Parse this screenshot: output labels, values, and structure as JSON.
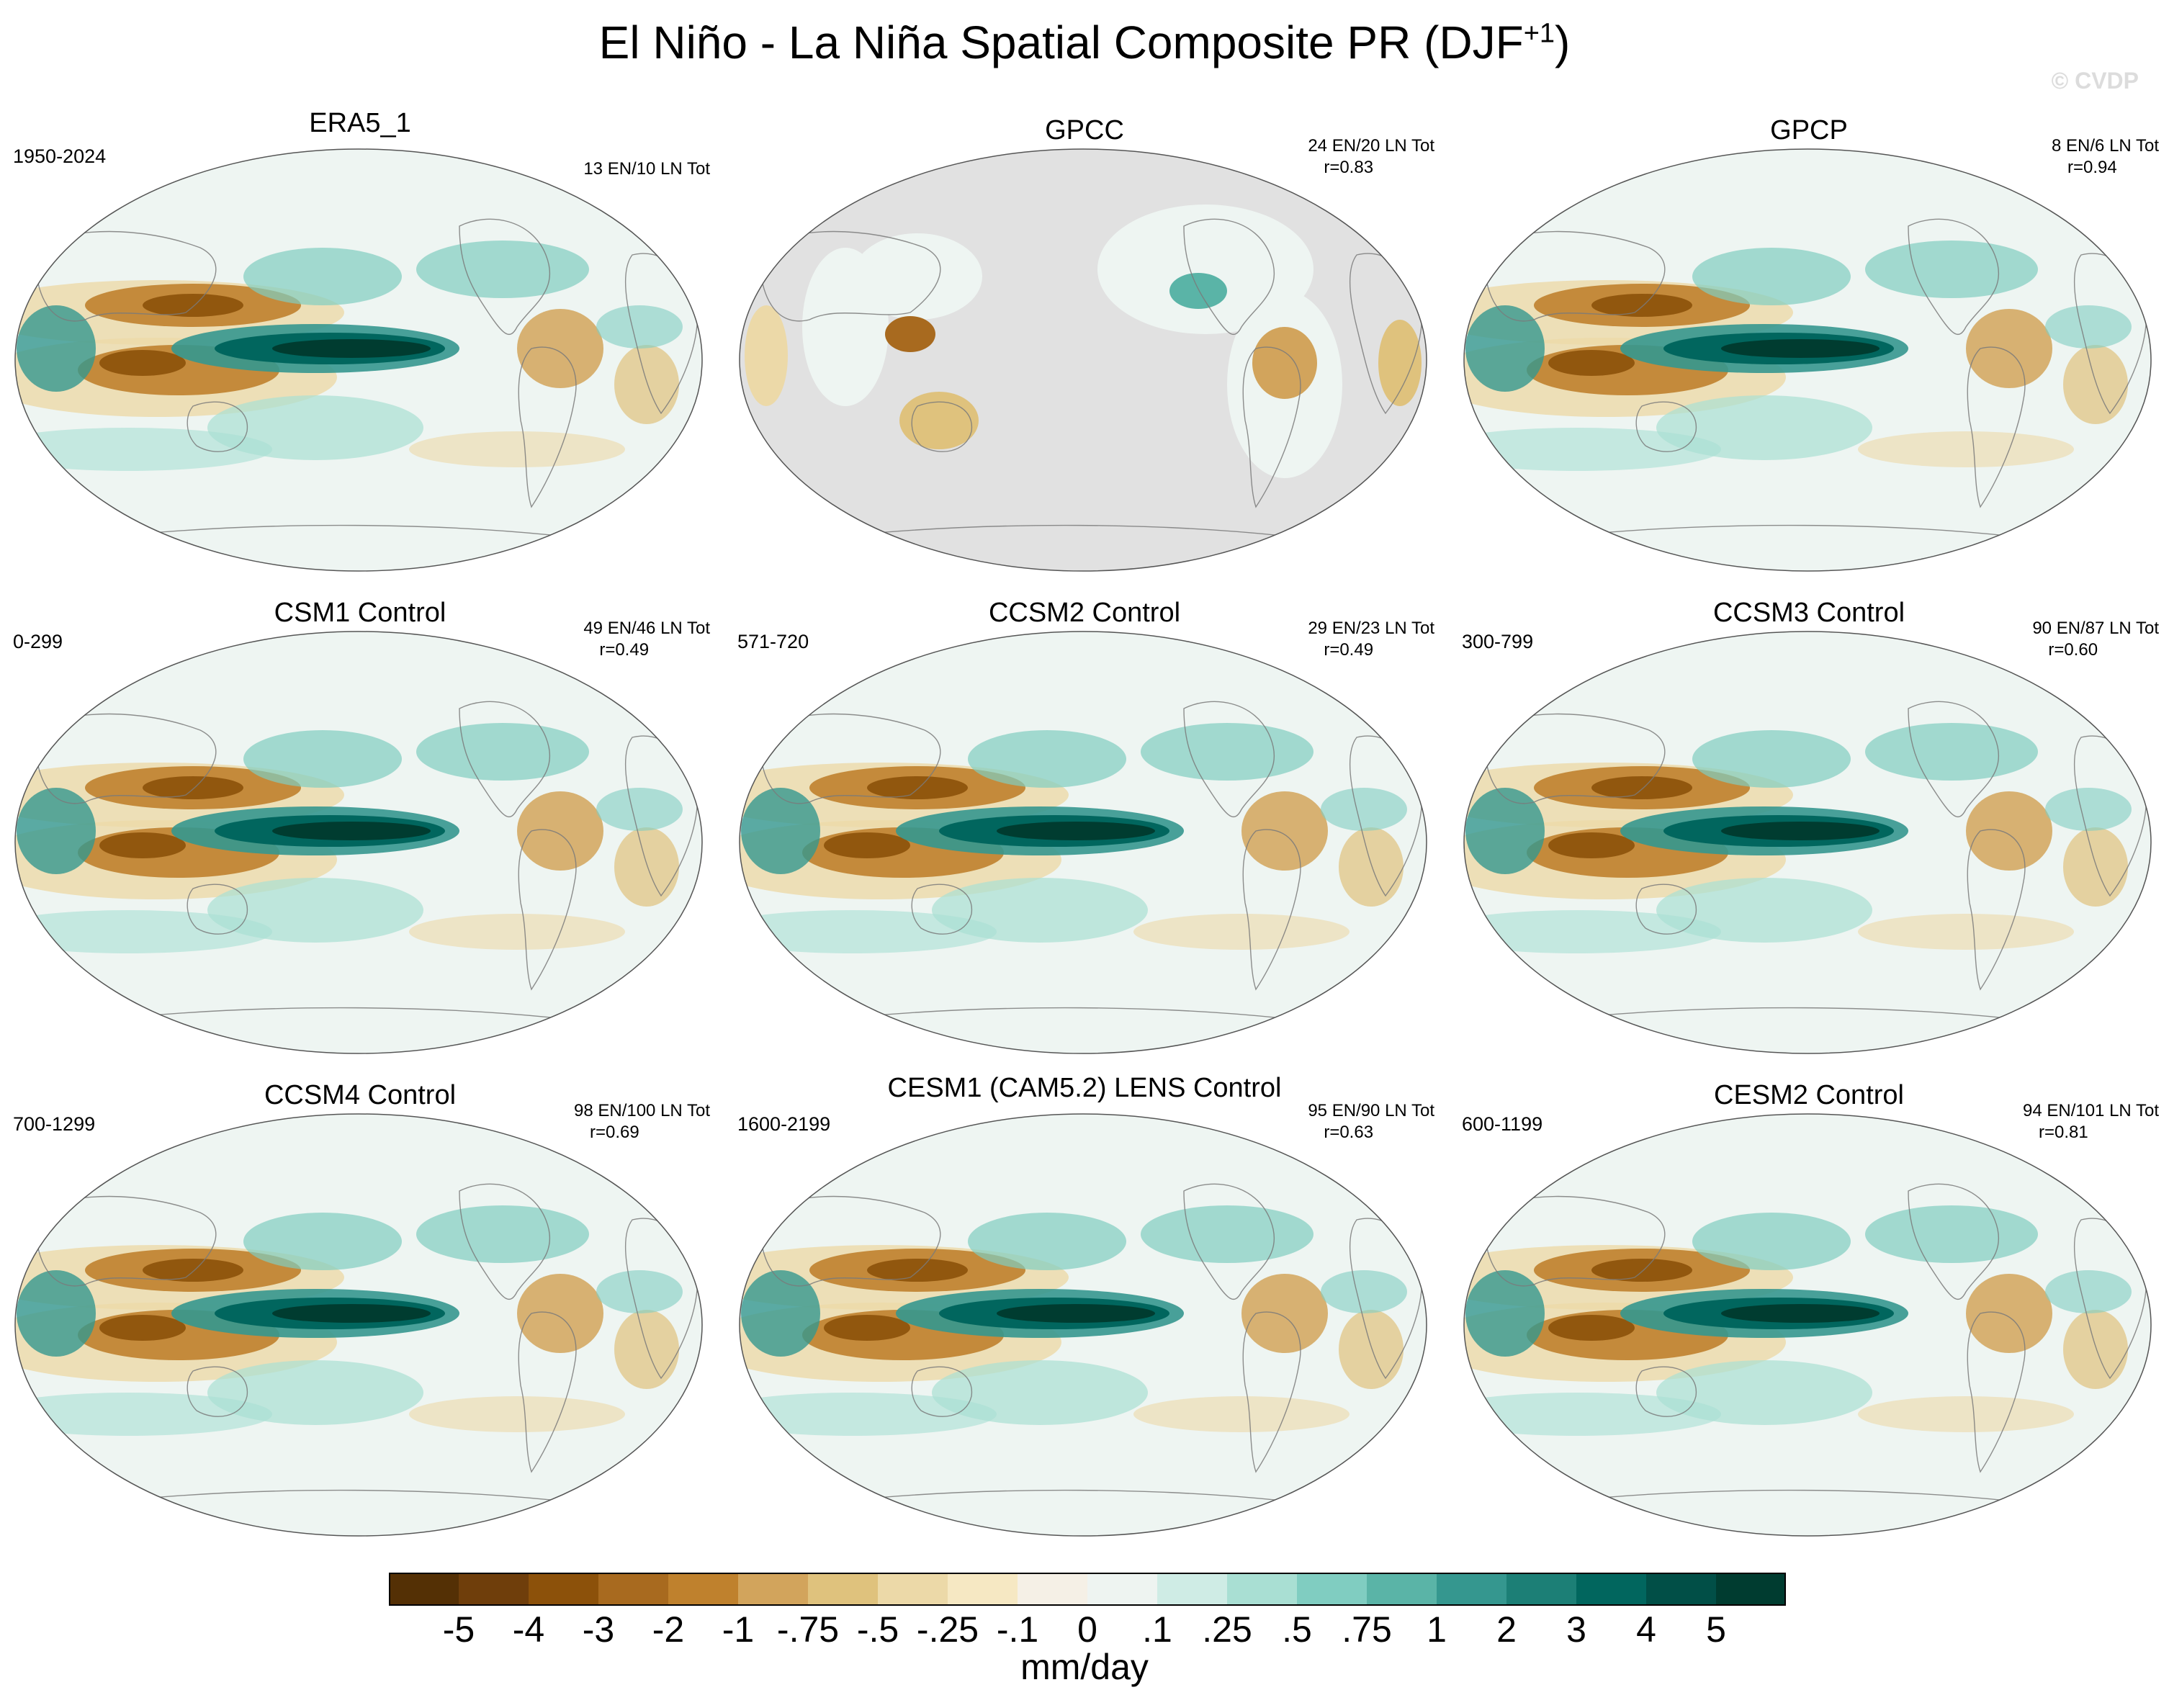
{
  "title": "El Niño - La Niña Spatial Composite PR (DJF",
  "title_sup": "+1",
  "title_end": ")",
  "watermark": "© CVDP",
  "units": "mm/day",
  "chart_data": {
    "type": "heatmap",
    "variable": "PR",
    "season": "DJF+1",
    "projection": "global map (Robinson-like ellipse), Pacific-centered",
    "levels": [
      "-5",
      "-4",
      "-3",
      "-2",
      "-1",
      "-.75",
      "-.5",
      "-.25",
      "-.1",
      "0",
      ".1",
      ".25",
      ".5",
      ".75",
      "1",
      "2",
      "3",
      "4",
      "5"
    ],
    "colors": [
      "#543005",
      "#6f3e0b",
      "#8c510a",
      "#a86a1f",
      "#bf812d",
      "#d2a45c",
      "#dfc27d",
      "#ecd9a8",
      "#f6e8c3",
      "#f5f0e6",
      "#eef4f1",
      "#cfece5",
      "#a9dfd3",
      "#80cdc1",
      "#5ab4a7",
      "#35978f",
      "#1c7f76",
      "#01665e",
      "#014f47",
      "#003c30"
    ],
    "panels": [
      {
        "name": "ERA5_1",
        "period": "1950-2024",
        "events": "13 EN/10 LN Tot",
        "r": ""
      },
      {
        "name": "GPCC",
        "period": "",
        "events": "24 EN/20 LN Tot",
        "r": "r=0.83"
      },
      {
        "name": "GPCP",
        "period": "",
        "events": "8 EN/6 LN Tot",
        "r": "r=0.94"
      },
      {
        "name": "CSM1 Control",
        "period": "0-299",
        "events": "49 EN/46 LN Tot",
        "r": "r=0.49"
      },
      {
        "name": "CCSM2 Control",
        "period": "571-720",
        "events": "29 EN/23 LN Tot",
        "r": "r=0.49"
      },
      {
        "name": "CCSM3 Control",
        "period": "300-799",
        "events": "90 EN/87 LN Tot",
        "r": "r=0.60"
      },
      {
        "name": "CCSM4 Control",
        "period": "700-1299",
        "events": "98 EN/100 LN Tot",
        "r": "r=0.69"
      },
      {
        "name": "CESM1 (CAM5.2) LENS Control",
        "period": "1600-2199",
        "events": "95 EN/90 LN Tot",
        "r": "r=0.63"
      },
      {
        "name": "CESM2 Control",
        "period": "600-1199",
        "events": "94 EN/101 LN Tot",
        "r": "r=0.81"
      }
    ]
  }
}
